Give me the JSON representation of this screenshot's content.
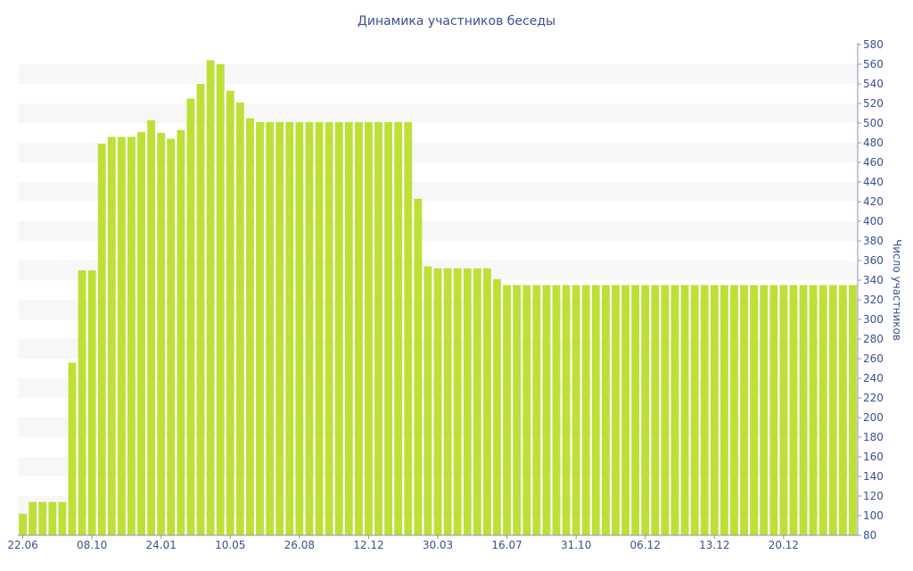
{
  "chart_data": {
    "type": "bar",
    "title": "Динамика участников беседы",
    "ylabel": "Число участников",
    "xlabel": "",
    "ylim": [
      80,
      580
    ],
    "y_ticks": [
      80,
      100,
      120,
      140,
      160,
      180,
      200,
      220,
      240,
      260,
      280,
      300,
      320,
      340,
      360,
      380,
      400,
      420,
      440,
      460,
      480,
      500,
      520,
      540,
      560,
      580
    ],
    "y_axis_side": "right",
    "grid": "alternating horizontal bands",
    "bar_color": "#bde038",
    "band_color": "#f7f7f7",
    "text_color": "#3b4f8f",
    "x_tick_labels": [
      {
        "label": "22.06",
        "index": 0
      },
      {
        "label": "08.10",
        "index": 7
      },
      {
        "label": "24.01",
        "index": 14
      },
      {
        "label": "10.05",
        "index": 21
      },
      {
        "label": "26.08",
        "index": 28
      },
      {
        "label": "12.12",
        "index": 35
      },
      {
        "label": "30.03",
        "index": 42
      },
      {
        "label": "16.07",
        "index": 49
      },
      {
        "label": "31.10",
        "index": 56
      },
      {
        "label": "06.12",
        "index": 63
      },
      {
        "label": "13.12",
        "index": 70
      },
      {
        "label": "20.12",
        "index": 77
      }
    ],
    "values": [
      102,
      114,
      114,
      114,
      114,
      256,
      350,
      350,
      479,
      486,
      486,
      486,
      491,
      503,
      490,
      484,
      493,
      525,
      540,
      564,
      560,
      533,
      521,
      505,
      501,
      501,
      501,
      501,
      501,
      501,
      501,
      501,
      501,
      501,
      501,
      501,
      501,
      501,
      501,
      501,
      423,
      354,
      352,
      352,
      352,
      352,
      352,
      352,
      341,
      335,
      335,
      335,
      335,
      335,
      335,
      335,
      335,
      335,
      335,
      335,
      335,
      335,
      335,
      335,
      335,
      335,
      335,
      335,
      335,
      335,
      335,
      335,
      335,
      335,
      335,
      335,
      335,
      335,
      335,
      335,
      335,
      335,
      335,
      335,
      335
    ]
  }
}
